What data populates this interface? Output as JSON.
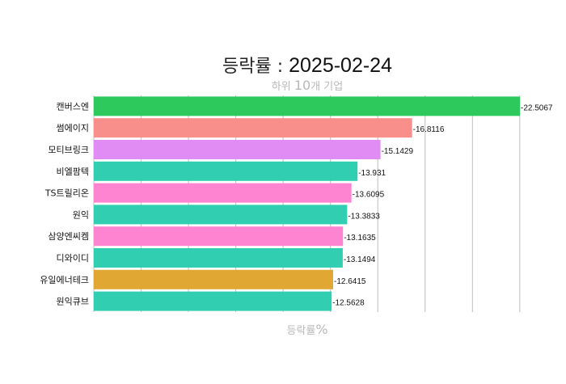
{
  "chart_data": {
    "type": "bar",
    "orientation": "horizontal",
    "title_prefix": "등락률 : ",
    "title_date": "2025-02-24",
    "subtitle_prefix": "하위 ",
    "subtitle_number": "10",
    "subtitle_suffix": "개 기업",
    "xlabel_prefix": "등락률",
    "xlabel_unit": "%",
    "categories": [
      "캔버스엔",
      "썸에이지",
      "모티브링크",
      "비엘팜텍",
      "TS트릴리온",
      "원익",
      "삼양엔씨켐",
      "디와이디",
      "유일에너테크",
      "원익큐브"
    ],
    "values": [
      -22.5067,
      -16.8116,
      -15.1429,
      -13.931,
      -13.6095,
      -13.3833,
      -13.1635,
      -13.1494,
      -12.6415,
      -12.5628
    ],
    "value_labels": [
      "-22.5067",
      "-16.8116",
      "-15.1429",
      "-13.931",
      "-13.6095",
      "-13.3833",
      "-13.1635",
      "-13.1494",
      "-12.6415",
      "-12.5628"
    ],
    "colors": [
      "#2ec95c",
      "#f88f8a",
      "#e18cf5",
      "#31ceb1",
      "#fe84d1",
      "#31ceb1",
      "#fe84d1",
      "#31ceb1",
      "#e0a832",
      "#31ceb1"
    ],
    "grid": true,
    "legend": "none"
  }
}
